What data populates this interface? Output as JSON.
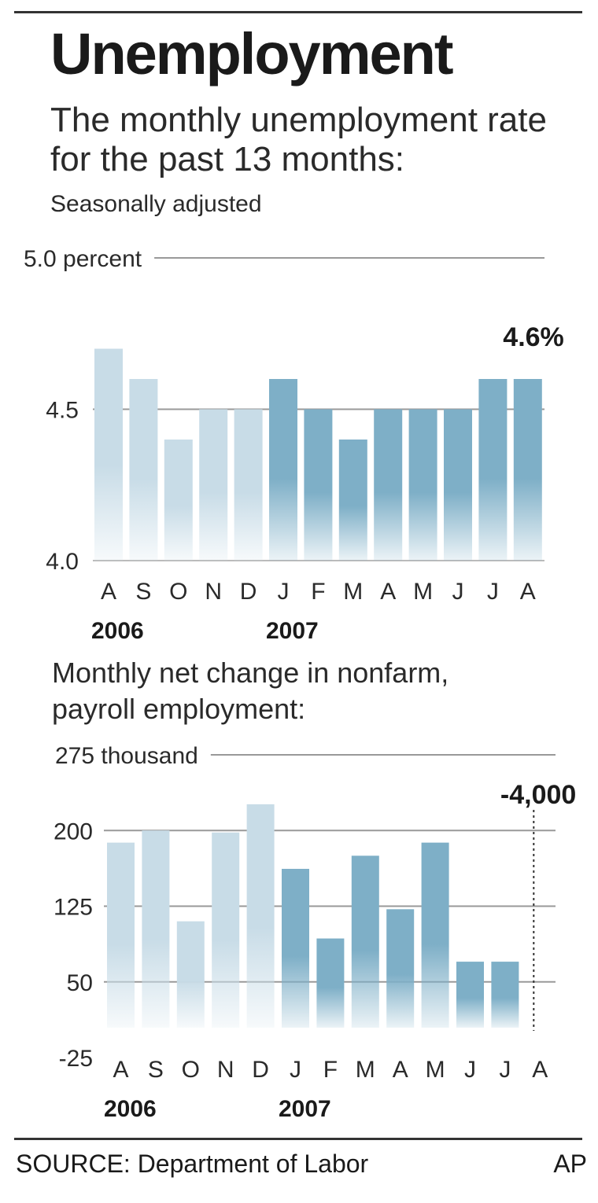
{
  "header": {
    "title": "Unemployment",
    "subtitle": "The monthly unemployment rate for the past 13 months:",
    "note": "Seasonally adjusted"
  },
  "footer": {
    "source": "SOURCE: Department of Labor",
    "credit": "AP"
  },
  "colors": {
    "bar_2006": "#c8dce7",
    "bar_2007": "#7eafc7",
    "gridline": "#999999"
  },
  "chart_data": [
    {
      "type": "bar",
      "title": "",
      "categories": [
        "A",
        "S",
        "O",
        "N",
        "D",
        "J",
        "F",
        "M",
        "A",
        "M",
        "J",
        "J",
        "A"
      ],
      "year_labels": [
        {
          "label": "2006",
          "category_index": 0
        },
        {
          "label": "2007",
          "category_index": 5
        }
      ],
      "series": [
        {
          "values": [
            4.7,
            4.6,
            4.4,
            4.5,
            4.5,
            4.6,
            4.5,
            4.4,
            4.5,
            4.5,
            4.5,
            4.6,
            4.6
          ]
        }
      ],
      "highlight_from_index": 5,
      "ylim": [
        4.0,
        5.0
      ],
      "yticks": [
        {
          "value": 5.0,
          "label": "5.0 percent"
        },
        {
          "value": 4.5,
          "label": "4.5"
        },
        {
          "value": 4.0,
          "label": "4.0"
        }
      ],
      "callout": {
        "label": "4.6%",
        "category_index": 12
      },
      "grid": true
    },
    {
      "type": "bar",
      "title": "Monthly net change in nonfarm, payroll employment:",
      "categories": [
        "A",
        "S",
        "O",
        "N",
        "D",
        "J",
        "F",
        "M",
        "A",
        "M",
        "J",
        "J",
        "A"
      ],
      "year_labels": [
        {
          "label": "2006",
          "category_index": 0
        },
        {
          "label": "2007",
          "category_index": 5
        }
      ],
      "series": [
        {
          "values": [
            188,
            200,
            110,
            198,
            226,
            162,
            93,
            175,
            122,
            188,
            70,
            70,
            -4
          ]
        }
      ],
      "highlight_from_index": 5,
      "ylim": [
        -25,
        275
      ],
      "yticks": [
        {
          "value": 275,
          "label": "275 thousand"
        },
        {
          "value": 200,
          "label": "200"
        },
        {
          "value": 125,
          "label": "125"
        },
        {
          "value": 50,
          "label": "50"
        },
        {
          "value": -25,
          "label": "-25"
        }
      ],
      "callout": {
        "label": "-4,000",
        "category_index": 12
      },
      "grid": true
    }
  ]
}
